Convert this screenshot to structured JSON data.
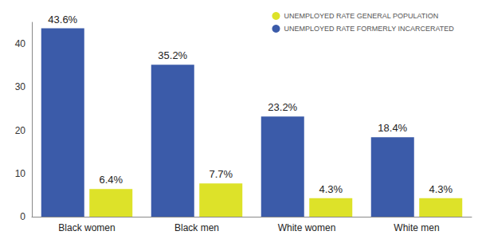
{
  "chart_data": {
    "type": "bar",
    "categories": [
      "Black women",
      "Black men",
      "White women",
      "White men"
    ],
    "series": [
      {
        "name": "UNEMPLOYED RATE FORMERLY INCARCERATED",
        "color": "#3b5ba9",
        "values": [
          43.6,
          35.2,
          23.2,
          18.4
        ],
        "value_labels": [
          "43.6%",
          "35.2%",
          "23.2%",
          "18.4%"
        ]
      },
      {
        "name": "UNEMPLOYED RATE GENERAL POPULATION",
        "color": "#dde229",
        "values": [
          6.4,
          7.7,
          4.3,
          4.3
        ],
        "value_labels": [
          "6.4%",
          "7.7%",
          "4.3%",
          "4.3%"
        ]
      }
    ],
    "ylim": [
      0,
      45
    ],
    "yticks": [
      0,
      10,
      20,
      30,
      40
    ],
    "grid": false,
    "legend": "upper right",
    "data_labels": true
  }
}
